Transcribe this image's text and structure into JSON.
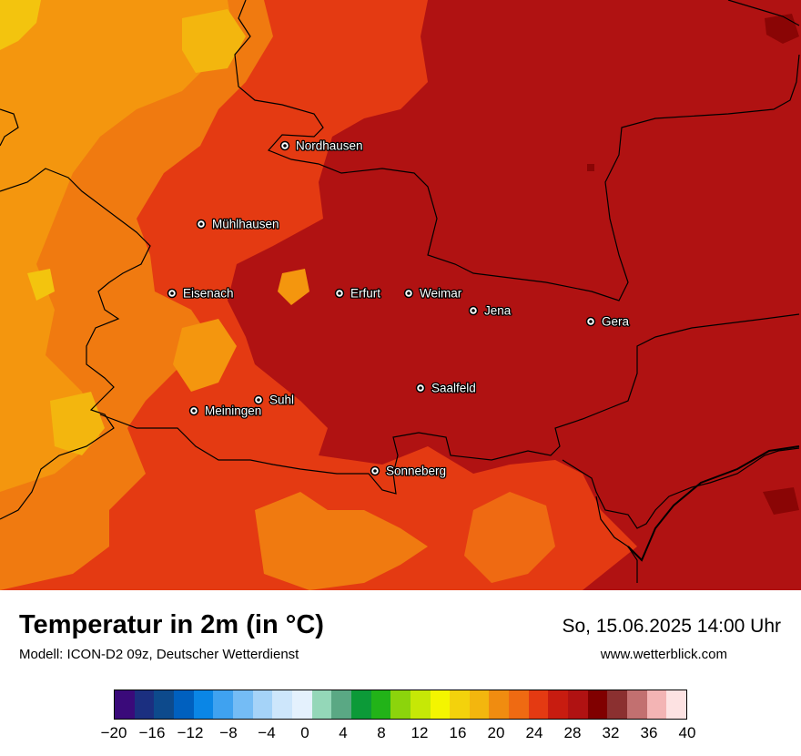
{
  "map": {
    "cities": [
      {
        "name": "Nordhausen"
      },
      {
        "name": "Mühlhausen"
      },
      {
        "name": "Eisenach"
      },
      {
        "name": "Erfurt"
      },
      {
        "name": "Weimar"
      },
      {
        "name": "Jena"
      },
      {
        "name": "Gera"
      },
      {
        "name": "Suhl"
      },
      {
        "name": "Meiningen"
      },
      {
        "name": "Saalfeld"
      },
      {
        "name": "Sonneberg"
      }
    ],
    "colors": {
      "hot_dark": "#b01212",
      "hot_mid": "#e43a12",
      "warm": "#f07a10",
      "warm_light": "#f4960e",
      "yellow": "#f3c40e",
      "deep": "#8a0505",
      "border": "#000000"
    }
  },
  "footer": {
    "title": "Temperatur in 2m (in °C)",
    "subtitle": "Modell: ICON-D2 09z, Deutscher Wetterdienst",
    "datetime": "So, 15.06.2025 14:00 Uhr",
    "website": "www.wetterblick.com"
  },
  "legend": {
    "colors": [
      "#3a0a7a",
      "#1b2f80",
      "#0d4a8c",
      "#0060bf",
      "#0a86e6",
      "#3fa2f0",
      "#74bcf5",
      "#a5d3f8",
      "#cde6fb",
      "#e4f1fd",
      "#94d7b8",
      "#5aa884",
      "#0c9a38",
      "#22b318",
      "#8cd40c",
      "#c6e806",
      "#f4f500",
      "#f3d20c",
      "#f3b60e",
      "#f08c10",
      "#ef6a12",
      "#e43a12",
      "#c81c10",
      "#b01212",
      "#800000",
      "#8b3030",
      "#c27070",
      "#f3b4b4",
      "#fde2e2"
    ],
    "tick_labels": [
      "−20",
      "−16",
      "−12",
      "−8",
      "−4",
      "0",
      "4",
      "8",
      "12",
      "16",
      "20",
      "24",
      "28",
      "32",
      "36",
      "40"
    ],
    "min": -20,
    "max": 40,
    "unit": "°C"
  }
}
